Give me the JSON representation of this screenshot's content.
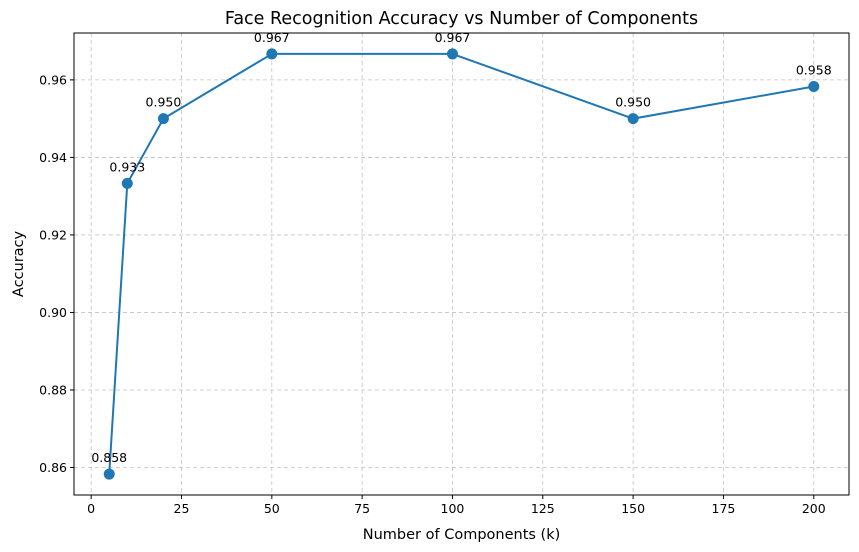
{
  "chart_data": {
    "type": "line",
    "title": "Face Recognition Accuracy vs Number of Components",
    "xlabel": "Number of Components (k)",
    "ylabel": "Accuracy",
    "x": [
      5,
      10,
      20,
      50,
      100,
      150,
      200
    ],
    "series": [
      {
        "values": [
          0.8583,
          0.9333,
          0.95,
          0.9667,
          0.9667,
          0.95,
          0.9583
        ],
        "labels": [
          "0.858",
          "0.933",
          "0.950",
          "0.967",
          "0.967",
          "0.950",
          "0.958"
        ],
        "color": "#1f77b4"
      }
    ],
    "xlim": [
      -4.75,
      209.75
    ],
    "ylim": [
      0.8529,
      0.9721
    ],
    "xticks": [
      0,
      25,
      50,
      75,
      100,
      125,
      150,
      175,
      200
    ],
    "xtick_labels": [
      "0",
      "25",
      "50",
      "75",
      "100",
      "125",
      "150",
      "175",
      "200"
    ],
    "yticks": [
      0.86,
      0.88,
      0.9,
      0.92,
      0.94,
      0.96
    ],
    "ytick_labels": [
      "0.86",
      "0.88",
      "0.90",
      "0.92",
      "0.94",
      "0.96"
    ],
    "grid": true,
    "legend": false
  }
}
